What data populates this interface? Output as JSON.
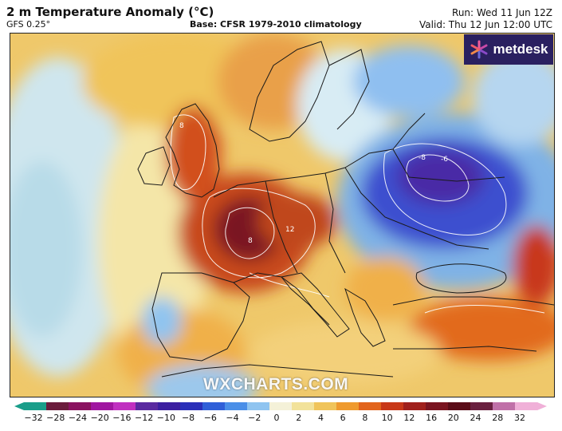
{
  "header": {
    "title": "2 m Temperature Anomaly (°C)",
    "model": "GFS 0.25°",
    "base": "Base: CFSR 1979-2010 climatology",
    "run": "Run: Wed 11 Jun 12Z",
    "valid": "Valid: Thu 12 Jun 12:00 UTC"
  },
  "logo": {
    "text": "metdesk"
  },
  "watermark": "WXCHARTS.COM",
  "colorbar": {
    "ticks": [
      "−32",
      "−28",
      "−24",
      "−20",
      "−16",
      "−12",
      "−10",
      "−8",
      "−6",
      "−4",
      "−2",
      "0",
      "2",
      "4",
      "6",
      "8",
      "10",
      "12",
      "16",
      "20",
      "24",
      "28",
      "32"
    ],
    "colors": [
      "#1a9e8a",
      "#6b1c3c",
      "#8a1260",
      "#a016a0",
      "#c030c0",
      "#5a2aa0",
      "#3c1fa0",
      "#2a2fb8",
      "#2f5fd8",
      "#4a8fe8",
      "#8fc4f0",
      "#f4f1d8",
      "#f2e29a",
      "#f0c45a",
      "#ef9a2e",
      "#e2641c",
      "#c83818",
      "#a0201c",
      "#7a1420",
      "#5a0c18",
      "#6a2040",
      "#c070a8",
      "#f0b0d8"
    ]
  },
  "map": {
    "labels": [
      {
        "text": "-8",
        "region": "poland"
      },
      {
        "text": "-6",
        "region": "belarus"
      },
      {
        "text": "8",
        "region": "france"
      },
      {
        "text": "12",
        "region": "alps"
      },
      {
        "text": "8",
        "region": "scotland"
      }
    ]
  }
}
